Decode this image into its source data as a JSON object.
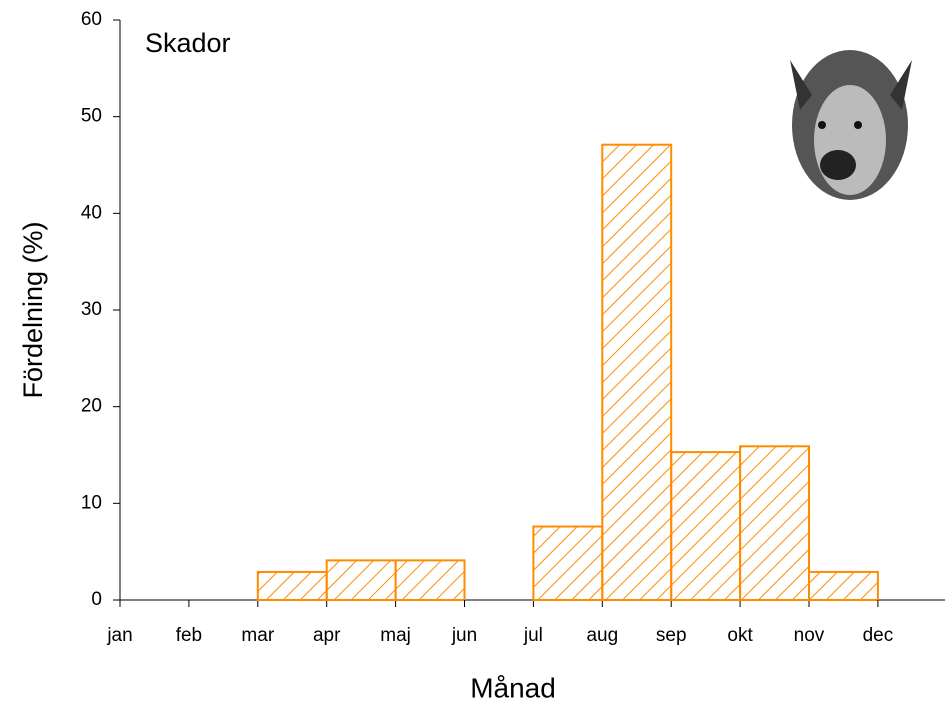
{
  "chart_data": {
    "type": "bar",
    "annotation": "Skador",
    "x_label": "Månad",
    "y_label": "Fördelning (%)",
    "categories": [
      "jan",
      "feb",
      "mar",
      "apr",
      "maj",
      "jun",
      "jul",
      "aug",
      "sep",
      "okt",
      "nov",
      "dec"
    ],
    "values": [
      null,
      null,
      2.9,
      4.1,
      4.1,
      null,
      7.6,
      47.1,
      15.3,
      15.9,
      2.9,
      null
    ],
    "color": "#ff8c00",
    "hatch": true,
    "ylim": [
      0,
      60
    ],
    "yticks": [
      0,
      10,
      20,
      30,
      40,
      50,
      60
    ],
    "grid": false
  }
}
